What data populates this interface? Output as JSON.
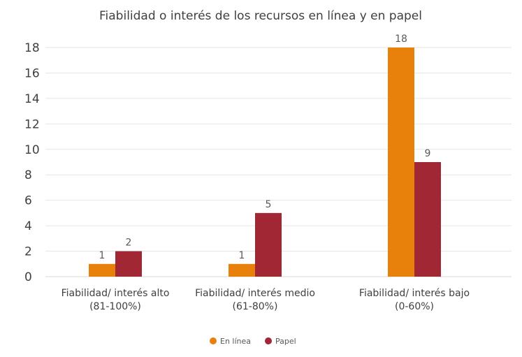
{
  "chart_data": {
    "type": "bar",
    "title": "Fiabilidad o interés de los recursos en línea y en papel",
    "categories": [
      [
        "Fiabilidad/ interés alto",
        "(81-100%)"
      ],
      [
        "Fiabilidad/ interés medio",
        "(61-80%)"
      ],
      [
        "Fiabilidad/ interés bajo",
        "(0-60%)"
      ]
    ],
    "series": [
      {
        "name": "En línea",
        "values": [
          1,
          1,
          18
        ],
        "color": "#e8800c"
      },
      {
        "name": "Papel",
        "values": [
          2,
          5,
          9
        ],
        "color": "#a02733"
      }
    ],
    "ylim": [
      0,
      18
    ],
    "yticks": [
      0,
      2,
      4,
      6,
      8,
      10,
      12,
      14,
      16,
      18
    ],
    "grid": true,
    "legend_position": "bottom-center",
    "data_labels": true
  }
}
